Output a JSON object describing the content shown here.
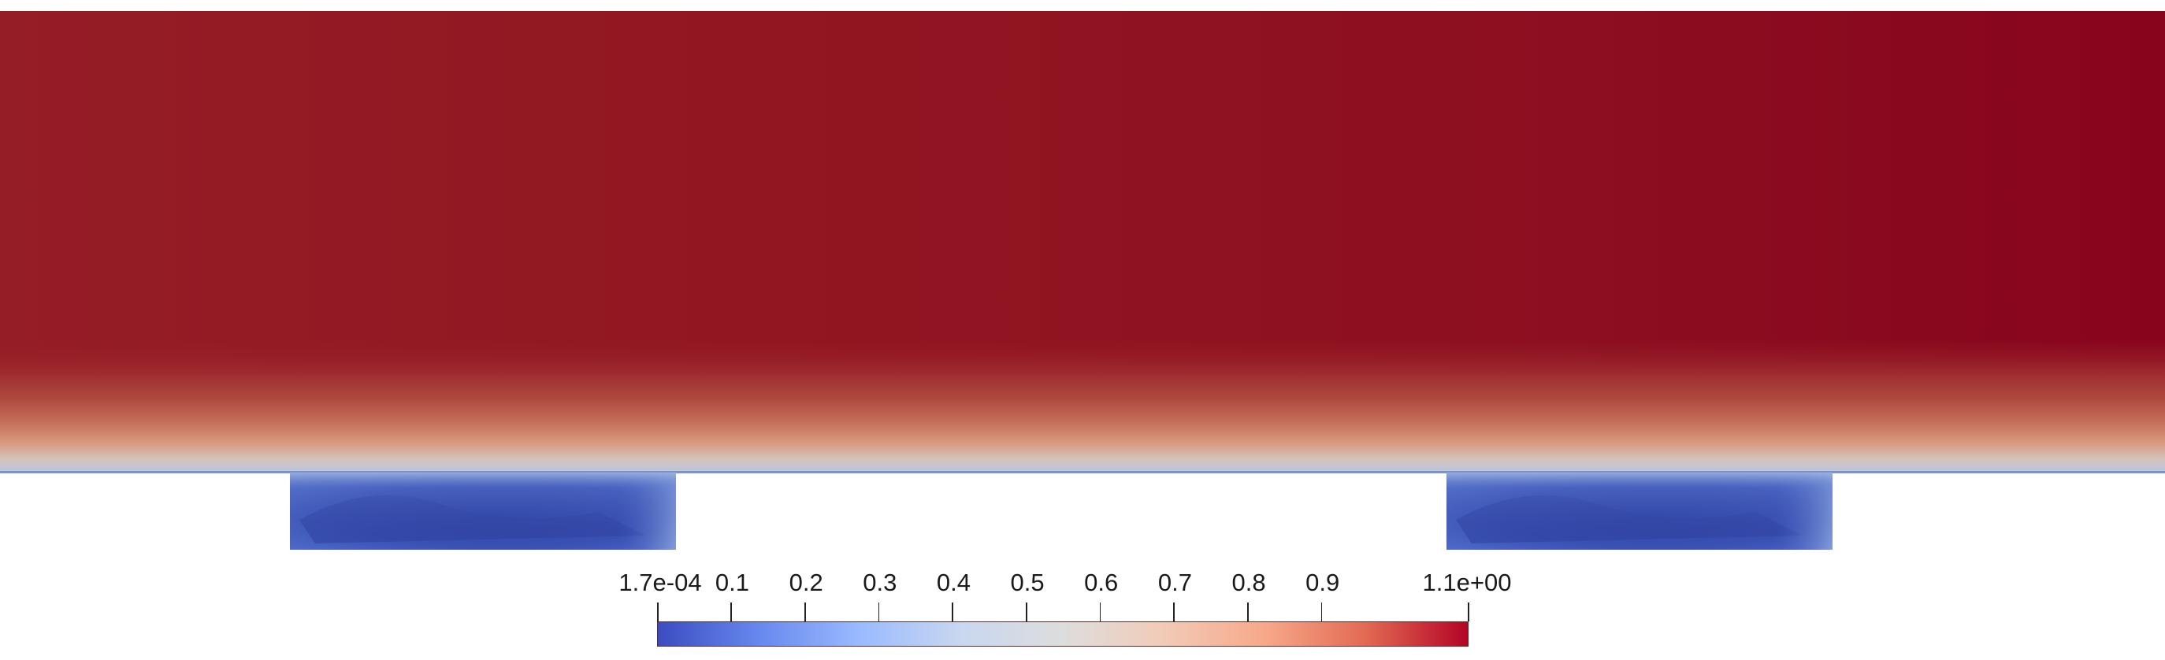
{
  "colormap": {
    "name": "Cool to Warm",
    "stops": [
      "#3b4cc0",
      "#6788ee",
      "#9abbff",
      "#c9d7f0",
      "#dddddd",
      "#f2cbb7",
      "#f7a889",
      "#e26952",
      "#b40426"
    ],
    "field_color_top": "#8a0a22",
    "field_color_bulk": "#911722",
    "field_color_left": "#941c25",
    "cavity_color": "#3448a8"
  },
  "colorbar": {
    "min_label": "1.7e-04",
    "max_label": "1.1e+00",
    "tick_labels": [
      "0.1",
      "0.2",
      "0.3",
      "0.4",
      "0.5",
      "0.6",
      "0.7",
      "0.8",
      "0.9"
    ],
    "range": [
      0.00017,
      1.1
    ],
    "tick_values": [
      0.1,
      0.2,
      0.3,
      0.4,
      0.5,
      0.6,
      0.7,
      0.8,
      0.9
    ]
  }
}
